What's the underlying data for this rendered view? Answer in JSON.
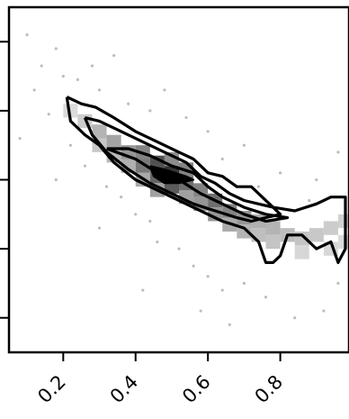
{
  "chart_data": {
    "type": "heatmap",
    "title": "",
    "xlabel": "",
    "ylabel": "",
    "xlim": [
      0.05,
      0.99
    ],
    "ylim": [
      0,
      1
    ],
    "x_ticks": [
      0.2,
      0.4,
      0.6,
      0.8
    ],
    "x_tick_labels": [
      "0.2",
      "0.4",
      "0.6",
      "0.8"
    ],
    "y_ticks": [
      0.1,
      0.3,
      0.5,
      0.7,
      0.9
    ],
    "y_tick_labels": [],
    "grid": false,
    "colors": {
      "ink": "#000000",
      "cell_dark": "#2a2a2a",
      "cell_light": "#efefef",
      "scatter": "#bdbdbd"
    },
    "density_cells": [
      {
        "x": 0.22,
        "y": 0.7,
        "v": 0.1
      },
      {
        "x": 0.26,
        "y": 0.67,
        "v": 0.18
      },
      {
        "x": 0.3,
        "y": 0.64,
        "v": 0.3
      },
      {
        "x": 0.3,
        "y": 0.6,
        "v": 0.2
      },
      {
        "x": 0.34,
        "y": 0.61,
        "v": 0.38
      },
      {
        "x": 0.34,
        "y": 0.57,
        "v": 0.28
      },
      {
        "x": 0.38,
        "y": 0.58,
        "v": 0.45
      },
      {
        "x": 0.38,
        "y": 0.54,
        "v": 0.32
      },
      {
        "x": 0.42,
        "y": 0.58,
        "v": 0.55
      },
      {
        "x": 0.42,
        "y": 0.54,
        "v": 0.6
      },
      {
        "x": 0.42,
        "y": 0.5,
        "v": 0.35
      },
      {
        "x": 0.46,
        "y": 0.55,
        "v": 0.8
      },
      {
        "x": 0.46,
        "y": 0.51,
        "v": 0.7
      },
      {
        "x": 0.46,
        "y": 0.47,
        "v": 0.4
      },
      {
        "x": 0.5,
        "y": 0.52,
        "v": 0.95
      },
      {
        "x": 0.5,
        "y": 0.48,
        "v": 0.75
      },
      {
        "x": 0.5,
        "y": 0.56,
        "v": 0.5
      },
      {
        "x": 0.54,
        "y": 0.49,
        "v": 0.65
      },
      {
        "x": 0.54,
        "y": 0.53,
        "v": 0.55
      },
      {
        "x": 0.54,
        "y": 0.45,
        "v": 0.4
      },
      {
        "x": 0.58,
        "y": 0.47,
        "v": 0.55
      },
      {
        "x": 0.58,
        "y": 0.43,
        "v": 0.45
      },
      {
        "x": 0.62,
        "y": 0.44,
        "v": 0.65
      },
      {
        "x": 0.62,
        "y": 0.4,
        "v": 0.45
      },
      {
        "x": 0.66,
        "y": 0.41,
        "v": 0.55
      },
      {
        "x": 0.66,
        "y": 0.37,
        "v": 0.35
      },
      {
        "x": 0.7,
        "y": 0.39,
        "v": 0.45
      },
      {
        "x": 0.7,
        "y": 0.35,
        "v": 0.3
      },
      {
        "x": 0.74,
        "y": 0.38,
        "v": 0.32
      },
      {
        "x": 0.74,
        "y": 0.34,
        "v": 0.25
      },
      {
        "x": 0.78,
        "y": 0.36,
        "v": 0.3
      },
      {
        "x": 0.78,
        "y": 0.32,
        "v": 0.22
      },
      {
        "x": 0.82,
        "y": 0.34,
        "v": 0.25
      },
      {
        "x": 0.86,
        "y": 0.33,
        "v": 0.22
      },
      {
        "x": 0.9,
        "y": 0.34,
        "v": 0.2
      },
      {
        "x": 0.94,
        "y": 0.36,
        "v": 0.18
      },
      {
        "x": 0.98,
        "y": 0.38,
        "v": 0.15
      },
      {
        "x": 0.86,
        "y": 0.29,
        "v": 0.12
      },
      {
        "x": 0.94,
        "y": 0.3,
        "v": 0.12
      },
      {
        "x": 0.98,
        "y": 0.32,
        "v": 0.1
      }
    ],
    "scatter_points": [
      {
        "x": 0.1,
        "y": 0.92
      },
      {
        "x": 0.14,
        "y": 0.83
      },
      {
        "x": 0.18,
        "y": 0.88
      },
      {
        "x": 0.2,
        "y": 0.8
      },
      {
        "x": 0.12,
        "y": 0.76
      },
      {
        "x": 0.24,
        "y": 0.79
      },
      {
        "x": 0.28,
        "y": 0.83
      },
      {
        "x": 0.16,
        "y": 0.69
      },
      {
        "x": 0.22,
        "y": 0.6
      },
      {
        "x": 0.26,
        "y": 0.54
      },
      {
        "x": 0.32,
        "y": 0.48
      },
      {
        "x": 0.36,
        "y": 0.45
      },
      {
        "x": 0.4,
        "y": 0.4
      },
      {
        "x": 0.44,
        "y": 0.38
      },
      {
        "x": 0.46,
        "y": 0.32
      },
      {
        "x": 0.52,
        "y": 0.3
      },
      {
        "x": 0.56,
        "y": 0.25
      },
      {
        "x": 0.6,
        "y": 0.22
      },
      {
        "x": 0.64,
        "y": 0.18
      },
      {
        "x": 0.7,
        "y": 0.2
      },
      {
        "x": 0.76,
        "y": 0.16
      },
      {
        "x": 0.84,
        "y": 0.1
      },
      {
        "x": 0.92,
        "y": 0.12
      },
      {
        "x": 0.96,
        "y": 0.2
      },
      {
        "x": 0.9,
        "y": 0.5
      },
      {
        "x": 0.8,
        "y": 0.52
      },
      {
        "x": 0.7,
        "y": 0.6
      },
      {
        "x": 0.6,
        "y": 0.64
      },
      {
        "x": 0.54,
        "y": 0.68
      },
      {
        "x": 0.44,
        "y": 0.7
      },
      {
        "x": 0.38,
        "y": 0.72
      },
      {
        "x": 0.3,
        "y": 0.76
      },
      {
        "x": 0.34,
        "y": 0.86
      },
      {
        "x": 0.48,
        "y": 0.76
      },
      {
        "x": 0.64,
        "y": 0.56
      },
      {
        "x": 0.74,
        "y": 0.48
      },
      {
        "x": 0.88,
        "y": 0.44
      },
      {
        "x": 0.96,
        "y": 0.58
      },
      {
        "x": 0.58,
        "y": 0.12
      },
      {
        "x": 0.42,
        "y": 0.18
      },
      {
        "x": 0.3,
        "y": 0.36
      },
      {
        "x": 0.18,
        "y": 0.5
      },
      {
        "x": 0.08,
        "y": 0.62
      },
      {
        "x": 0.66,
        "y": 0.08
      },
      {
        "x": 0.78,
        "y": 0.26
      }
    ],
    "contour_levels": [
      {
        "name": "outer",
        "points": [
          [
            0.21,
            0.74
          ],
          [
            0.25,
            0.72
          ],
          [
            0.29,
            0.71
          ],
          [
            0.34,
            0.68
          ],
          [
            0.4,
            0.64
          ],
          [
            0.46,
            0.61
          ],
          [
            0.52,
            0.58
          ],
          [
            0.56,
            0.56
          ],
          [
            0.6,
            0.52
          ],
          [
            0.64,
            0.51
          ],
          [
            0.68,
            0.48
          ],
          [
            0.72,
            0.48
          ],
          [
            0.75,
            0.45
          ],
          [
            0.78,
            0.42
          ],
          [
            0.84,
            0.41
          ],
          [
            0.9,
            0.43
          ],
          [
            0.94,
            0.45
          ],
          [
            0.98,
            0.45
          ],
          [
            0.98,
            0.3
          ],
          [
            0.96,
            0.26
          ],
          [
            0.94,
            0.32
          ],
          [
            0.9,
            0.3
          ],
          [
            0.86,
            0.34
          ],
          [
            0.82,
            0.34
          ],
          [
            0.8,
            0.28
          ],
          [
            0.78,
            0.26
          ],
          [
            0.76,
            0.26
          ],
          [
            0.74,
            0.32
          ],
          [
            0.7,
            0.36
          ],
          [
            0.64,
            0.38
          ],
          [
            0.58,
            0.41
          ],
          [
            0.52,
            0.44
          ],
          [
            0.46,
            0.47
          ],
          [
            0.4,
            0.5
          ],
          [
            0.34,
            0.55
          ],
          [
            0.3,
            0.6
          ],
          [
            0.26,
            0.63
          ],
          [
            0.22,
            0.67
          ],
          [
            0.21,
            0.74
          ]
        ]
      },
      {
        "name": "middle",
        "points": [
          [
            0.26,
            0.68
          ],
          [
            0.3,
            0.67
          ],
          [
            0.36,
            0.64
          ],
          [
            0.42,
            0.61
          ],
          [
            0.48,
            0.58
          ],
          [
            0.54,
            0.55
          ],
          [
            0.58,
            0.51
          ],
          [
            0.62,
            0.49
          ],
          [
            0.66,
            0.46
          ],
          [
            0.7,
            0.44
          ],
          [
            0.74,
            0.43
          ],
          [
            0.78,
            0.42
          ],
          [
            0.8,
            0.4
          ],
          [
            0.76,
            0.39
          ],
          [
            0.72,
            0.38
          ],
          [
            0.68,
            0.39
          ],
          [
            0.62,
            0.41
          ],
          [
            0.56,
            0.43
          ],
          [
            0.5,
            0.46
          ],
          [
            0.44,
            0.49
          ],
          [
            0.38,
            0.53
          ],
          [
            0.32,
            0.58
          ],
          [
            0.28,
            0.63
          ],
          [
            0.26,
            0.68
          ]
        ]
      },
      {
        "name": "inner",
        "points": [
          [
            0.32,
            0.59
          ],
          [
            0.38,
            0.59
          ],
          [
            0.44,
            0.57
          ],
          [
            0.5,
            0.54
          ],
          [
            0.56,
            0.52
          ],
          [
            0.6,
            0.48
          ],
          [
            0.64,
            0.45
          ],
          [
            0.7,
            0.42
          ],
          [
            0.76,
            0.4
          ],
          [
            0.82,
            0.39
          ],
          [
            0.76,
            0.38
          ],
          [
            0.7,
            0.4
          ],
          [
            0.64,
            0.43
          ],
          [
            0.58,
            0.46
          ],
          [
            0.52,
            0.5
          ],
          [
            0.46,
            0.52
          ],
          [
            0.4,
            0.56
          ],
          [
            0.32,
            0.59
          ]
        ]
      },
      {
        "name": "core",
        "points": [
          [
            0.44,
            0.54
          ],
          [
            0.48,
            0.53
          ],
          [
            0.54,
            0.51
          ],
          [
            0.56,
            0.5
          ],
          [
            0.52,
            0.49
          ],
          [
            0.48,
            0.49
          ],
          [
            0.45,
            0.51
          ],
          [
            0.44,
            0.54
          ]
        ]
      }
    ]
  }
}
